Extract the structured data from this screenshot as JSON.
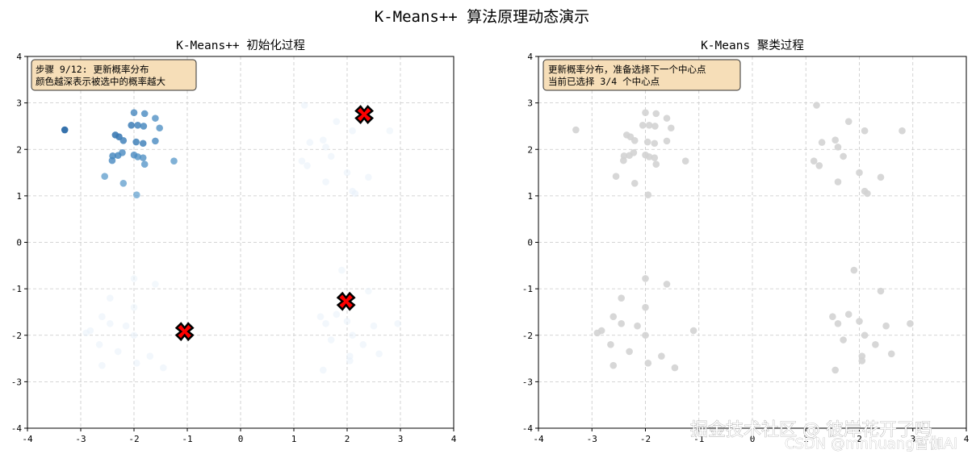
{
  "figure_title": "K-Means++ 算法原理动态演示",
  "watermark": {
    "line1": "掘金技术社区 @ 彼岸花开了吗",
    "line2": "CSDN @mnhuang暂伽AI"
  },
  "chart_data": [
    {
      "type": "scatter",
      "title": "K-Means++ 初始化过程",
      "xlim": [
        -4,
        4
      ],
      "ylim": [
        -4,
        4
      ],
      "xticks": [
        "-4",
        "-3",
        "-2",
        "-1",
        "0",
        "1",
        "2",
        "3",
        "4"
      ],
      "yticks": [
        "-4",
        "-3",
        "-2",
        "-1",
        "0",
        "1",
        "2",
        "3",
        "4"
      ],
      "grid": true,
      "info_box": [
        "步骤 9/12: 更新概率分布",
        "颜色越深表示被选中的概率越大"
      ],
      "colors": {
        "high": "#2b6aa8",
        "mid": "#5b9fd0",
        "low": "#e8f1fa",
        "center": "#ff0000"
      },
      "points": [
        {
          "x": -3.3,
          "y": 2.42,
          "p": 1.0
        },
        {
          "x": -2.35,
          "y": 2.31,
          "p": 0.82
        },
        {
          "x": -2.28,
          "y": 2.27,
          "p": 0.8
        },
        {
          "x": -2.05,
          "y": 2.52,
          "p": 0.75
        },
        {
          "x": -1.93,
          "y": 2.52,
          "p": 0.7
        },
        {
          "x": -1.82,
          "y": 2.5,
          "p": 0.65
        },
        {
          "x": -2.0,
          "y": 2.79,
          "p": 0.62
        },
        {
          "x": -1.8,
          "y": 2.77,
          "p": 0.6
        },
        {
          "x": -1.6,
          "y": 2.67,
          "p": 0.55
        },
        {
          "x": -1.52,
          "y": 2.46,
          "p": 0.55
        },
        {
          "x": -2.2,
          "y": 2.19,
          "p": 0.7
        },
        {
          "x": -1.96,
          "y": 2.16,
          "p": 0.72
        },
        {
          "x": -1.83,
          "y": 2.13,
          "p": 0.7
        },
        {
          "x": -1.6,
          "y": 2.18,
          "p": 0.6
        },
        {
          "x": -2.4,
          "y": 1.86,
          "p": 0.65
        },
        {
          "x": -2.3,
          "y": 1.87,
          "p": 0.65
        },
        {
          "x": -2.22,
          "y": 1.93,
          "p": 0.6
        },
        {
          "x": -2.0,
          "y": 1.88,
          "p": 0.6
        },
        {
          "x": -1.93,
          "y": 1.84,
          "p": 0.55
        },
        {
          "x": -1.83,
          "y": 1.82,
          "p": 0.55
        },
        {
          "x": -2.41,
          "y": 1.76,
          "p": 0.6
        },
        {
          "x": -1.8,
          "y": 1.68,
          "p": 0.5
        },
        {
          "x": -1.25,
          "y": 1.75,
          "p": 0.45
        },
        {
          "x": -2.55,
          "y": 1.42,
          "p": 0.42
        },
        {
          "x": -2.2,
          "y": 1.27,
          "p": 0.4
        },
        {
          "x": -1.95,
          "y": 1.02,
          "p": 0.35
        },
        {
          "x": 1.2,
          "y": 2.95,
          "p": 0.06
        },
        {
          "x": 1.8,
          "y": 2.6,
          "p": 0.05
        },
        {
          "x": 2.1,
          "y": 2.4,
          "p": 0.05
        },
        {
          "x": 1.3,
          "y": 2.15,
          "p": 0.06
        },
        {
          "x": 1.6,
          "y": 2.05,
          "p": 0.05
        },
        {
          "x": 1.7,
          "y": 1.85,
          "p": 0.05
        },
        {
          "x": 1.55,
          "y": 2.2,
          "p": 0.05
        },
        {
          "x": 2.8,
          "y": 2.4,
          "p": 0.04
        },
        {
          "x": 1.15,
          "y": 1.75,
          "p": 0.06
        },
        {
          "x": 1.25,
          "y": 1.65,
          "p": 0.05
        },
        {
          "x": 2.0,
          "y": 1.5,
          "p": 0.05
        },
        {
          "x": 2.1,
          "y": 1.1,
          "p": 0.08
        },
        {
          "x": 2.15,
          "y": 1.05,
          "p": 0.08
        },
        {
          "x": 1.6,
          "y": 1.3,
          "p": 0.05
        },
        {
          "x": 2.4,
          "y": 1.4,
          "p": 0.05
        },
        {
          "x": -2.0,
          "y": -0.78,
          "p": 0.04
        },
        {
          "x": -1.6,
          "y": -0.9,
          "p": 0.04
        },
        {
          "x": -2.45,
          "y": -1.2,
          "p": 0.06
        },
        {
          "x": -2.0,
          "y": -1.4,
          "p": 0.04
        },
        {
          "x": -2.6,
          "y": -1.6,
          "p": 0.05
        },
        {
          "x": -2.15,
          "y": -1.8,
          "p": 0.05
        },
        {
          "x": -2.45,
          "y": -1.75,
          "p": 0.05
        },
        {
          "x": -2.9,
          "y": -1.95,
          "p": 0.06
        },
        {
          "x": -2.82,
          "y": -1.9,
          "p": 0.06
        },
        {
          "x": -2.0,
          "y": -2.0,
          "p": 0.05
        },
        {
          "x": -1.1,
          "y": -1.9,
          "p": 0.05
        },
        {
          "x": -2.65,
          "y": -2.2,
          "p": 0.05
        },
        {
          "x": -2.3,
          "y": -2.35,
          "p": 0.05
        },
        {
          "x": -1.7,
          "y": -2.45,
          "p": 0.05
        },
        {
          "x": -1.95,
          "y": -2.6,
          "p": 0.05
        },
        {
          "x": -2.6,
          "y": -2.65,
          "p": 0.06
        },
        {
          "x": -1.45,
          "y": -2.7,
          "p": 0.05
        },
        {
          "x": 1.9,
          "y": -0.6,
          "p": 0.04
        },
        {
          "x": 2.4,
          "y": -1.05,
          "p": 0.04
        },
        {
          "x": 1.5,
          "y": -1.6,
          "p": 0.06
        },
        {
          "x": 1.8,
          "y": -1.55,
          "p": 0.06
        },
        {
          "x": 1.6,
          "y": -1.75,
          "p": 0.06
        },
        {
          "x": 2.0,
          "y": -1.7,
          "p": 0.05
        },
        {
          "x": 2.5,
          "y": -1.8,
          "p": 0.05
        },
        {
          "x": 2.95,
          "y": -1.75,
          "p": 0.05
        },
        {
          "x": 2.1,
          "y": -2.0,
          "p": 0.05
        },
        {
          "x": 1.7,
          "y": -2.1,
          "p": 0.05
        },
        {
          "x": 2.3,
          "y": -2.2,
          "p": 0.05
        },
        {
          "x": 2.6,
          "y": -2.4,
          "p": 0.05
        },
        {
          "x": 2.05,
          "y": -2.45,
          "p": 0.05
        },
        {
          "x": 1.55,
          "y": -2.75,
          "p": 0.05
        },
        {
          "x": 2.05,
          "y": -2.55,
          "p": 0.05
        }
      ],
      "centers": [
        {
          "x": 2.32,
          "y": 2.75
        },
        {
          "x": 1.98,
          "y": -1.27
        },
        {
          "x": -1.05,
          "y": -1.92
        }
      ]
    },
    {
      "type": "scatter",
      "title": "K-Means 聚类过程",
      "xlim": [
        -4,
        4
      ],
      "ylim": [
        -4,
        4
      ],
      "xticks": [
        "-4",
        "-3",
        "-2",
        "-1",
        "0",
        "1",
        "2",
        "3",
        "4"
      ],
      "yticks": [
        "-4",
        "-3",
        "-2",
        "-1",
        "0",
        "1",
        "2",
        "3",
        "4"
      ],
      "grid": true,
      "info_box": [
        "更新概率分布，准备选择下一个中心点",
        "当前已选择 3/4 个中心点"
      ],
      "colors": {
        "point": "#d3d3d3"
      },
      "points": [
        {
          "x": -3.3,
          "y": 2.42
        },
        {
          "x": -2.35,
          "y": 2.31
        },
        {
          "x": -2.28,
          "y": 2.27
        },
        {
          "x": -2.05,
          "y": 2.52
        },
        {
          "x": -1.93,
          "y": 2.52
        },
        {
          "x": -1.82,
          "y": 2.5
        },
        {
          "x": -2.0,
          "y": 2.79
        },
        {
          "x": -1.8,
          "y": 2.77
        },
        {
          "x": -1.6,
          "y": 2.67
        },
        {
          "x": -1.52,
          "y": 2.46
        },
        {
          "x": -2.2,
          "y": 2.19
        },
        {
          "x": -1.96,
          "y": 2.16
        },
        {
          "x": -1.83,
          "y": 2.13
        },
        {
          "x": -1.6,
          "y": 2.18
        },
        {
          "x": -2.4,
          "y": 1.86
        },
        {
          "x": -2.3,
          "y": 1.87
        },
        {
          "x": -2.22,
          "y": 1.93
        },
        {
          "x": -2.0,
          "y": 1.88
        },
        {
          "x": -1.93,
          "y": 1.84
        },
        {
          "x": -1.83,
          "y": 1.82
        },
        {
          "x": -2.41,
          "y": 1.76
        },
        {
          "x": -1.8,
          "y": 1.68
        },
        {
          "x": -1.25,
          "y": 1.75
        },
        {
          "x": -2.55,
          "y": 1.42
        },
        {
          "x": -2.2,
          "y": 1.27
        },
        {
          "x": -1.95,
          "y": 1.02
        },
        {
          "x": 1.2,
          "y": 2.95
        },
        {
          "x": 1.8,
          "y": 2.6
        },
        {
          "x": 2.1,
          "y": 2.4
        },
        {
          "x": 1.3,
          "y": 2.15
        },
        {
          "x": 1.6,
          "y": 2.05
        },
        {
          "x": 1.7,
          "y": 1.85
        },
        {
          "x": 1.55,
          "y": 2.2
        },
        {
          "x": 2.8,
          "y": 2.4
        },
        {
          "x": 1.15,
          "y": 1.75
        },
        {
          "x": 1.25,
          "y": 1.65
        },
        {
          "x": 2.0,
          "y": 1.5
        },
        {
          "x": 2.1,
          "y": 1.1
        },
        {
          "x": 2.15,
          "y": 1.05
        },
        {
          "x": 1.6,
          "y": 1.3
        },
        {
          "x": 2.4,
          "y": 1.4
        },
        {
          "x": -2.0,
          "y": -0.78
        },
        {
          "x": -1.6,
          "y": -0.9
        },
        {
          "x": -2.45,
          "y": -1.2
        },
        {
          "x": -2.0,
          "y": -1.4
        },
        {
          "x": -2.6,
          "y": -1.6
        },
        {
          "x": -2.15,
          "y": -1.8
        },
        {
          "x": -2.45,
          "y": -1.75
        },
        {
          "x": -2.9,
          "y": -1.95
        },
        {
          "x": -2.82,
          "y": -1.9
        },
        {
          "x": -2.0,
          "y": -2.0
        },
        {
          "x": -1.1,
          "y": -1.9
        },
        {
          "x": -2.65,
          "y": -2.2
        },
        {
          "x": -2.3,
          "y": -2.35
        },
        {
          "x": -1.7,
          "y": -2.45
        },
        {
          "x": -1.95,
          "y": -2.6
        },
        {
          "x": -2.6,
          "y": -2.65
        },
        {
          "x": -1.45,
          "y": -2.7
        },
        {
          "x": 1.9,
          "y": -0.6
        },
        {
          "x": 2.4,
          "y": -1.05
        },
        {
          "x": 1.5,
          "y": -1.6
        },
        {
          "x": 1.8,
          "y": -1.55
        },
        {
          "x": 1.6,
          "y": -1.75
        },
        {
          "x": 2.0,
          "y": -1.7
        },
        {
          "x": 2.5,
          "y": -1.8
        },
        {
          "x": 2.95,
          "y": -1.75
        },
        {
          "x": 2.1,
          "y": -2.0
        },
        {
          "x": 1.7,
          "y": -2.1
        },
        {
          "x": 2.3,
          "y": -2.2
        },
        {
          "x": 2.6,
          "y": -2.4
        },
        {
          "x": 2.05,
          "y": -2.45
        },
        {
          "x": 1.55,
          "y": -2.75
        },
        {
          "x": 2.05,
          "y": -2.55
        }
      ]
    }
  ]
}
